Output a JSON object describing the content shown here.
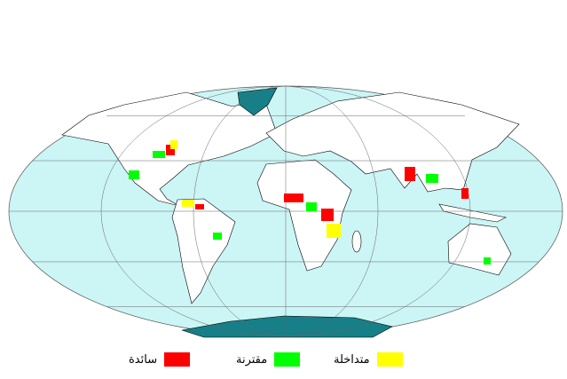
{
  "map": {
    "projection": "mollweide",
    "ocean_color": "#ccf5f5",
    "land_color": "#ffffff",
    "ice_color": "#177f87",
    "graticule_meridians_deg": [
      -120,
      -60,
      0,
      60,
      120
    ],
    "graticule_parallels_deg": [
      -60,
      -30,
      0,
      30,
      60
    ]
  },
  "legend": [
    {
      "label": "سائدة",
      "color": "#ff0000"
    },
    {
      "label": "مقترنة",
      "color": "#00ff00"
    },
    {
      "label": "متداخلة",
      "color": "#ffff00"
    }
  ]
}
